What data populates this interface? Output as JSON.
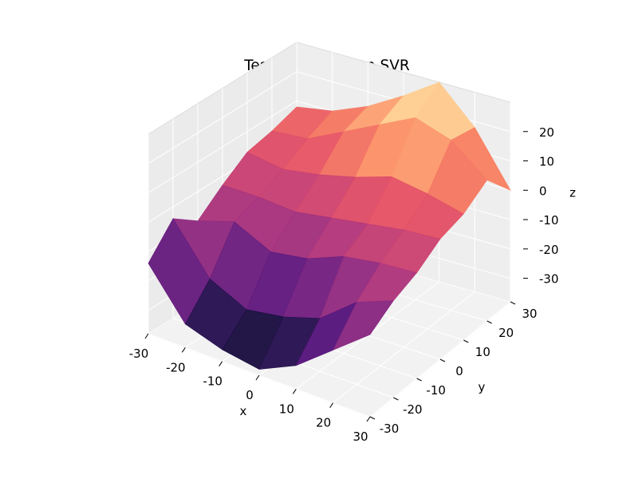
{
  "chart_data": {
    "type": "surface3d",
    "title": "Test set - addition SVR",
    "xlabel": "x",
    "ylabel": "y",
    "zlabel": "z",
    "xlim": [
      -30,
      30
    ],
    "ylim": [
      -30,
      30
    ],
    "zlim": [
      -38,
      30
    ],
    "x_ticks": [
      -30,
      -20,
      -10,
      0,
      10,
      20,
      30
    ],
    "y_ticks": [
      -30,
      -20,
      -10,
      0,
      10,
      20,
      30
    ],
    "z_ticks": [
      -30,
      -20,
      -10,
      0,
      10,
      20
    ],
    "colormap": "magma",
    "grid": true,
    "x": [
      -30,
      -20,
      -10,
      0,
      10,
      20,
      30
    ],
    "y": [
      -30,
      -20,
      -10,
      0,
      10,
      20,
      30
    ],
    "z": [
      [
        -14,
        -4,
        -10,
        -3,
        3,
        5,
        8
      ],
      [
        -30,
        -20,
        -6,
        -3,
        1,
        6,
        10
      ],
      [
        -34,
        -26,
        -12,
        -4,
        3,
        12,
        15
      ],
      [
        -36,
        -24,
        -10,
        -2,
        6,
        18,
        22
      ],
      [
        -30,
        -20,
        -5,
        0,
        10,
        24,
        30
      ],
      [
        -20,
        -10,
        -3,
        2,
        8,
        20,
        18
      ],
      [
        -10,
        -5,
        -2,
        3,
        5,
        10,
        0
      ]
    ]
  }
}
